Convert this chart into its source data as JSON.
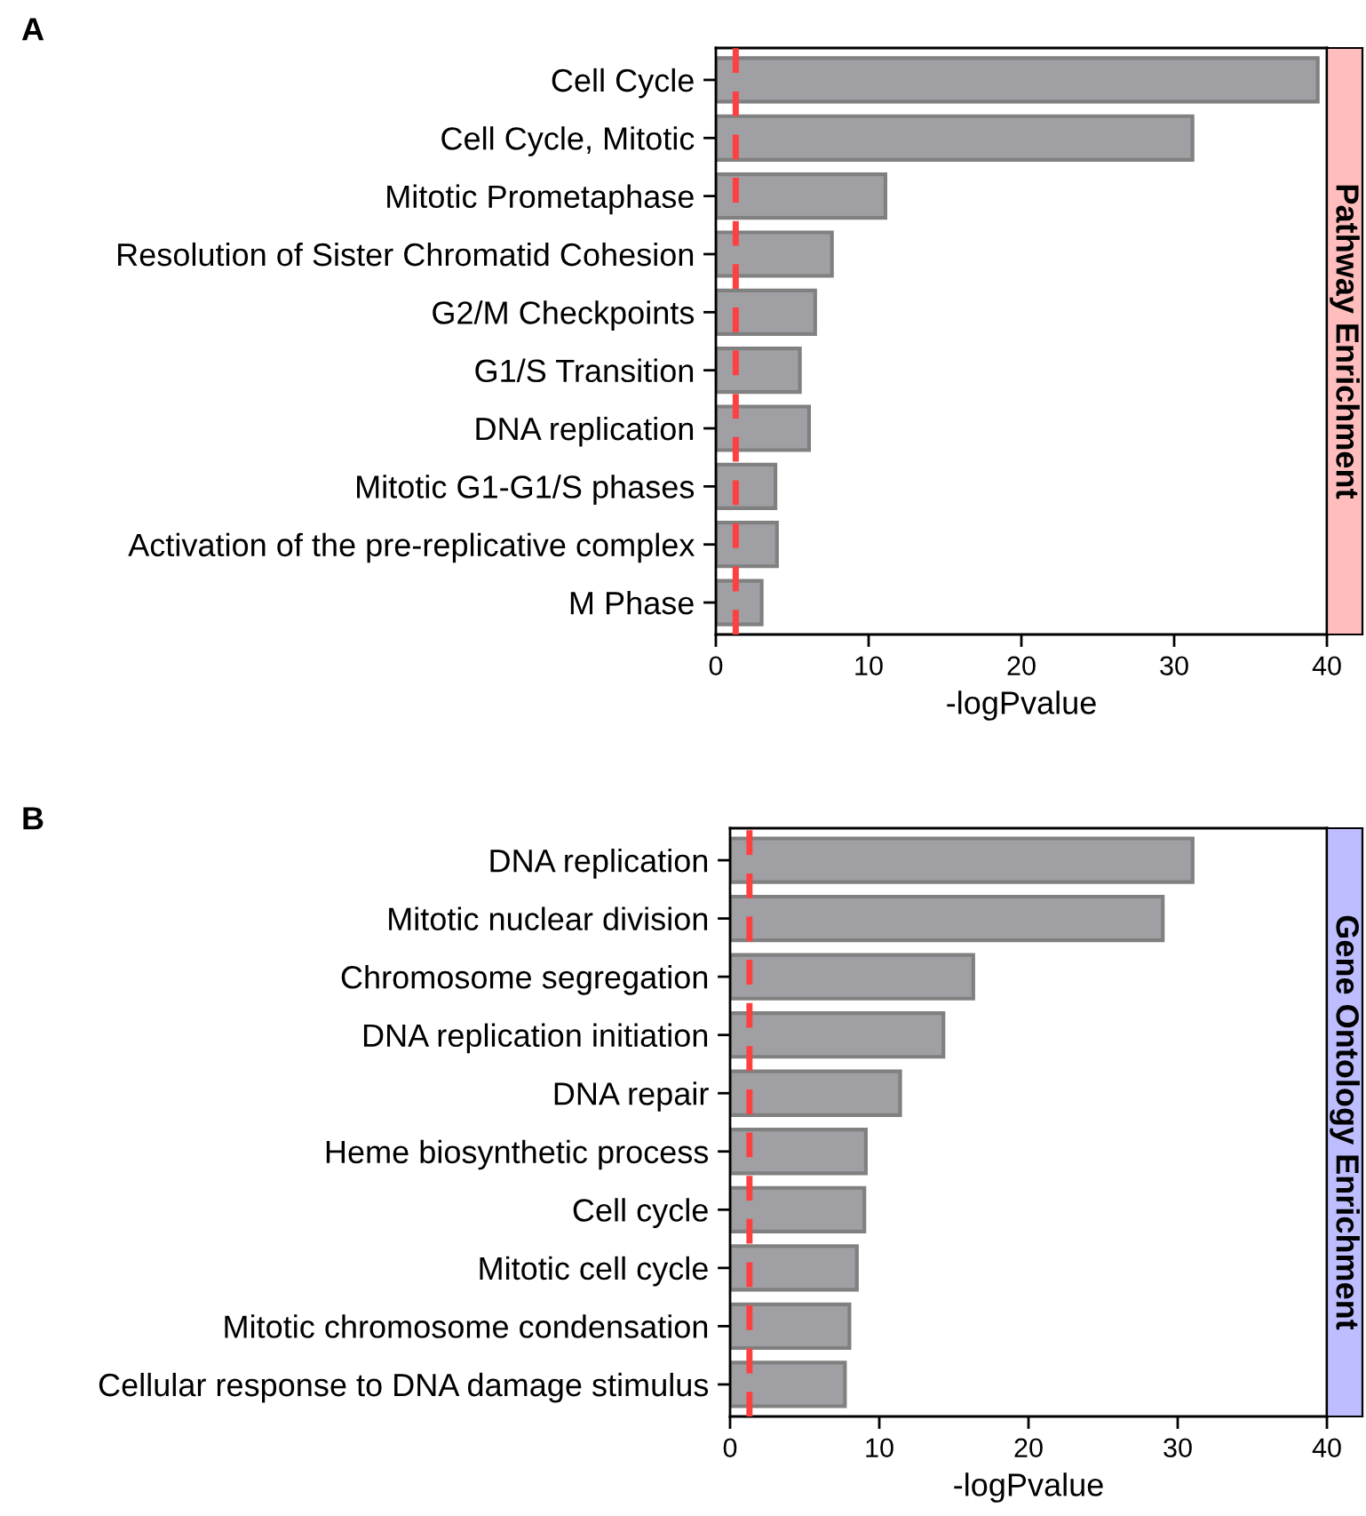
{
  "chart_data": [
    {
      "type": "bar",
      "orientation": "horizontal",
      "subtitle": "Pathway Enrichment",
      "xlabel": "-logPvalue",
      "annotations": [
        "A"
      ],
      "categories": [
        "Cell Cycle",
        "Cell Cycle, Mitotic",
        "Mitotic Prometaphase",
        "Resolution of Sister Chromatid Cohesion",
        "G2/M Checkpoints",
        "G1/S Transition",
        "DNA replication",
        "Mitotic G1-G1/S phases",
        "Activation of the pre-replicative complex",
        "M Phase"
      ],
      "values": [
        39.4,
        31.2,
        11.1,
        7.6,
        6.5,
        5.5,
        6.1,
        3.9,
        4.0,
        3.0
      ],
      "color": "#a09fa4",
      "xlim": [
        0,
        40
      ],
      "xticks": [
        0,
        10,
        20,
        30,
        40
      ],
      "grid": false,
      "legend": false,
      "ref_lines": [
        {
          "axis": "x",
          "value": 1.3,
          "color": "#ff4040",
          "line_style": "dashed"
        }
      ]
    },
    {
      "type": "bar",
      "orientation": "horizontal",
      "subtitle": "Gene Ontology Enrichment",
      "xlabel": "-logPvalue",
      "annotations": [
        "B"
      ],
      "categories": [
        "DNA replication",
        "Mitotic nuclear division",
        "Chromosome segregation",
        "DNA replication initiation",
        "DNA repair",
        "Heme biosynthetic process",
        "Cell cycle",
        "Mitotic cell cycle",
        "Mitotic chromosome condensation",
        "Cellular response to DNA damage stimulus"
      ],
      "values": [
        31.0,
        29.0,
        16.3,
        14.3,
        11.4,
        9.1,
        9.0,
        8.5,
        8.0,
        7.7
      ],
      "color": "#a09fa4",
      "xlim": [
        0,
        40
      ],
      "xticks": [
        0,
        10,
        20,
        30,
        40
      ],
      "grid": false,
      "legend": false,
      "ref_lines": [
        {
          "axis": "x",
          "value": 1.3,
          "color": "#ff4040",
          "line_style": "dashed"
        }
      ]
    }
  ]
}
